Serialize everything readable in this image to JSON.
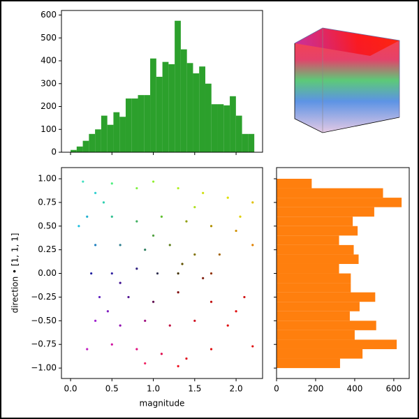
{
  "chart_data": [
    {
      "type": "histogram",
      "color": "#2ca02c",
      "bins": [
        0,
        0.074,
        0.148,
        0.222,
        0.296,
        0.37,
        0.444,
        0.518,
        0.592,
        0.666,
        0.74,
        0.814,
        0.888,
        0.962,
        1.036,
        1.11,
        1.184,
        1.258,
        1.332,
        1.406,
        1.48,
        1.554,
        1.628,
        1.702,
        1.776,
        1.85,
        1.924,
        1.998,
        2.072,
        2.146,
        2.22
      ],
      "values": [
        10,
        25,
        50,
        80,
        100,
        160,
        120,
        175,
        155,
        235,
        235,
        250,
        250,
        410,
        330,
        395,
        385,
        575,
        450,
        390,
        345,
        375,
        300,
        210,
        210,
        205,
        245,
        160,
        80,
        80
      ],
      "xlim": [
        -0.11,
        2.32
      ],
      "ylim": [
        0,
        620
      ],
      "xticks": [
        0,
        0.5,
        1,
        1.5,
        2
      ],
      "yticks": [
        0,
        100,
        200,
        300,
        400,
        500,
        600
      ]
    },
    {
      "type": "scatter",
      "x_label": "magnitude",
      "y_label": "direction • [1, 1, 1]",
      "x": [
        0.15,
        0.3,
        0.5,
        0.8,
        1.0,
        1.3,
        1.6,
        1.9,
        2.2,
        0.2,
        0.5,
        0.8,
        1.1,
        1.4,
        1.7,
        2.0,
        2.2,
        0.3,
        0.6,
        0.9,
        1.2,
        1.5,
        1.8,
        0.25,
        0.5,
        0.8,
        1.05,
        1.3,
        1.6,
        0.35,
        0.7,
        1.0,
        1.3,
        1.7,
        2.1,
        0.3,
        0.6,
        0.9,
        1.2,
        1.5,
        1.9,
        0.2,
        0.5,
        0.8,
        1.1,
        1.4,
        1.7,
        2.2,
        0.9,
        1.3,
        0.4,
        1.5,
        2.05,
        0.1,
        1.35,
        0.6,
        2.0,
        1.0,
        1.7,
        0.45
      ],
      "y": [
        0.97,
        0.85,
        0.95,
        0.9,
        0.97,
        0.9,
        0.85,
        0.8,
        0.75,
        0.6,
        0.6,
        0.55,
        0.6,
        0.55,
        0.5,
        0.45,
        0.3,
        0.3,
        0.3,
        0.25,
        0.3,
        0.2,
        0.2,
        0.0,
        0.0,
        0.05,
        0.0,
        0.0,
        -0.05,
        -0.25,
        -0.25,
        -0.3,
        -0.2,
        -0.3,
        -0.25,
        -0.5,
        -0.55,
        -0.5,
        -0.55,
        -0.5,
        -0.55,
        -0.8,
        -0.75,
        -0.8,
        -0.85,
        -0.9,
        -0.8,
        -0.77,
        -0.95,
        -0.98,
        0.75,
        0.7,
        0.6,
        0.5,
        0.1,
        -0.1,
        -0.4,
        0.4,
        0.0,
        -0.4
      ],
      "colors": [
        "#40e0c0",
        "#30d0d0",
        "#50f080",
        "#80f040",
        "#90f030",
        "#b0f020",
        "#d0e010",
        "#e0e000",
        "#e0c000",
        "#20b0d0",
        "#30c090",
        "#40b060",
        "#60c030",
        "#90a010",
        "#b09000",
        "#d09000",
        "#e08000",
        "#2080c0",
        "#308090",
        "#308060",
        "#608020",
        "#807000",
        "#a06000",
        "#2020a0",
        "#3020a0",
        "#302080",
        "#303050",
        "#403000",
        "#802010",
        "#6020c0",
        "#501090",
        "#601050",
        "#801010",
        "#c01010",
        "#d01010",
        "#a020d0",
        "#9010b0",
        "#a01080",
        "#c01040",
        "#d01020",
        "#e01010",
        "#c020c0",
        "#d010a0",
        "#e01080",
        "#e01050",
        "#e01020",
        "#e01010",
        "#e01010",
        "#f02060",
        "#f01020",
        "#30d0b0",
        "#b0e020",
        "#e0d000",
        "#20c0e0",
        "#605000",
        "#401090",
        "#e01010",
        "#50a040",
        "#903000",
        "#8020c0"
      ],
      "xlim": [
        -0.11,
        2.32
      ],
      "ylim": [
        -1.11,
        1.118
      ],
      "xticks": [
        {
          "value": 0,
          "label": "0.0"
        },
        0.5,
        {
          "value": 1,
          "label": "1.0"
        },
        1.5,
        {
          "value": 2,
          "label": "2.0"
        }
      ],
      "yticks": [
        {
          "value": 1,
          "label": "1.00"
        },
        0.75,
        {
          "value": 0.5,
          "label": "0.50"
        },
        0.25,
        {
          "value": 0,
          "label": "0.00"
        },
        {
          "value": -0.25,
          "label": "−0.25"
        },
        {
          "value": -0.5,
          "label": "−0.50"
        },
        {
          "value": -0.75,
          "label": "−0.75"
        },
        {
          "value": -1,
          "label": "−1.00"
        }
      ]
    },
    {
      "type": "histogram",
      "orientation": "horizontal",
      "color": "#ff7f0e",
      "bins": [
        -1,
        -0.9,
        -0.8,
        -0.7,
        -0.6,
        -0.5,
        -0.4,
        -0.3,
        -0.2,
        -0.1,
        0,
        0.1,
        0.2,
        0.3,
        0.4,
        0.5,
        0.6,
        0.7,
        0.8,
        0.9,
        1
      ],
      "values": [
        325,
        440,
        615,
        400,
        510,
        375,
        425,
        505,
        380,
        380,
        320,
        420,
        395,
        320,
        415,
        390,
        500,
        640,
        545,
        180
      ],
      "xlim": [
        0,
        679
      ],
      "ylim": [
        -1.11,
        1.118
      ],
      "xticks": [
        0,
        200,
        400,
        600
      ],
      "yticks": [
        1,
        0.75,
        0.5,
        0.25,
        0,
        -0.25,
        -0.5,
        -0.75,
        -1
      ]
    }
  ]
}
